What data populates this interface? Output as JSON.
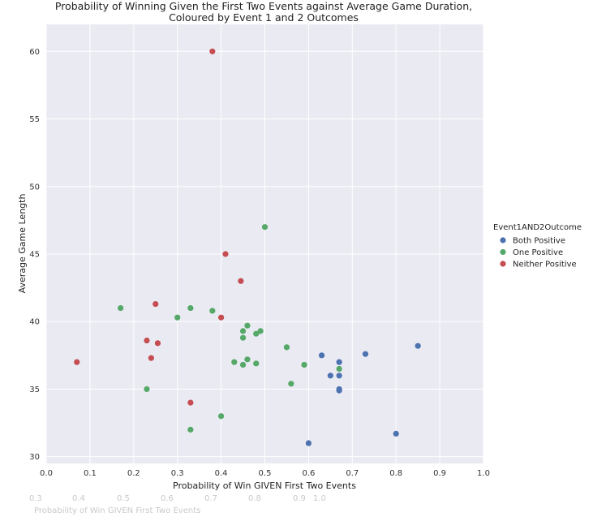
{
  "chart_data": {
    "type": "scatter",
    "title": [
      "Probability of Winning Given the First Two Events against Average Game Duration,",
      "Coloured by Event 1 and 2 Outcomes"
    ],
    "xlabel": "Probability of Win GIVEN First Two Events",
    "ylabel": "Average Game Length",
    "xlim": [
      0.0,
      1.0
    ],
    "ylim": [
      29.5,
      62
    ],
    "xticks": [
      "0.0",
      "0.1",
      "0.2",
      "0.3",
      "0.4",
      "0.5",
      "0.6",
      "0.7",
      "0.8",
      "0.9",
      "1.0"
    ],
    "yticks": [
      "30",
      "35",
      "40",
      "45",
      "50",
      "55",
      "60"
    ],
    "grid": true,
    "legend": {
      "title": "Event1AND2Outcome",
      "placement": "right"
    },
    "series": [
      {
        "name": "Both Positive",
        "color": "#4c72b0",
        "points": [
          [
            0.6,
            31.0
          ],
          [
            0.63,
            37.5
          ],
          [
            0.65,
            36.0
          ],
          [
            0.67,
            37.0
          ],
          [
            0.67,
            36.0
          ],
          [
            0.67,
            35.0
          ],
          [
            0.67,
            34.9
          ],
          [
            0.73,
            37.6
          ],
          [
            0.8,
            31.7
          ],
          [
            0.85,
            38.2
          ]
        ]
      },
      {
        "name": "One Positive",
        "color": "#55a868",
        "points": [
          [
            0.17,
            41.0
          ],
          [
            0.23,
            35.0
          ],
          [
            0.3,
            40.3
          ],
          [
            0.33,
            41.0
          ],
          [
            0.33,
            32.0
          ],
          [
            0.38,
            40.8
          ],
          [
            0.4,
            33.0
          ],
          [
            0.43,
            37.0
          ],
          [
            0.45,
            39.3
          ],
          [
            0.45,
            38.8
          ],
          [
            0.45,
            36.8
          ],
          [
            0.46,
            39.7
          ],
          [
            0.46,
            37.2
          ],
          [
            0.48,
            36.9
          ],
          [
            0.48,
            39.1
          ],
          [
            0.49,
            39.3
          ],
          [
            0.5,
            47.0
          ],
          [
            0.55,
            38.1
          ],
          [
            0.56,
            35.4
          ],
          [
            0.59,
            36.8
          ],
          [
            0.67,
            36.5
          ]
        ]
      },
      {
        "name": "Neither Positive",
        "color": "#c44e52",
        "points": [
          [
            0.07,
            37.0
          ],
          [
            0.23,
            38.6
          ],
          [
            0.24,
            37.3
          ],
          [
            0.25,
            41.3
          ],
          [
            0.255,
            38.4
          ],
          [
            0.33,
            34.0
          ],
          [
            0.38,
            60.0
          ],
          [
            0.4,
            40.3
          ],
          [
            0.41,
            45.0
          ],
          [
            0.445,
            43.0
          ]
        ]
      }
    ]
  },
  "ghost": {
    "ticks": [
      "0.3",
      "0.4",
      "0.5",
      "0.6",
      "0.7",
      "0.8",
      "0.9",
      "1.0"
    ],
    "label": "Probability of Win GIVEN First Two Events"
  }
}
